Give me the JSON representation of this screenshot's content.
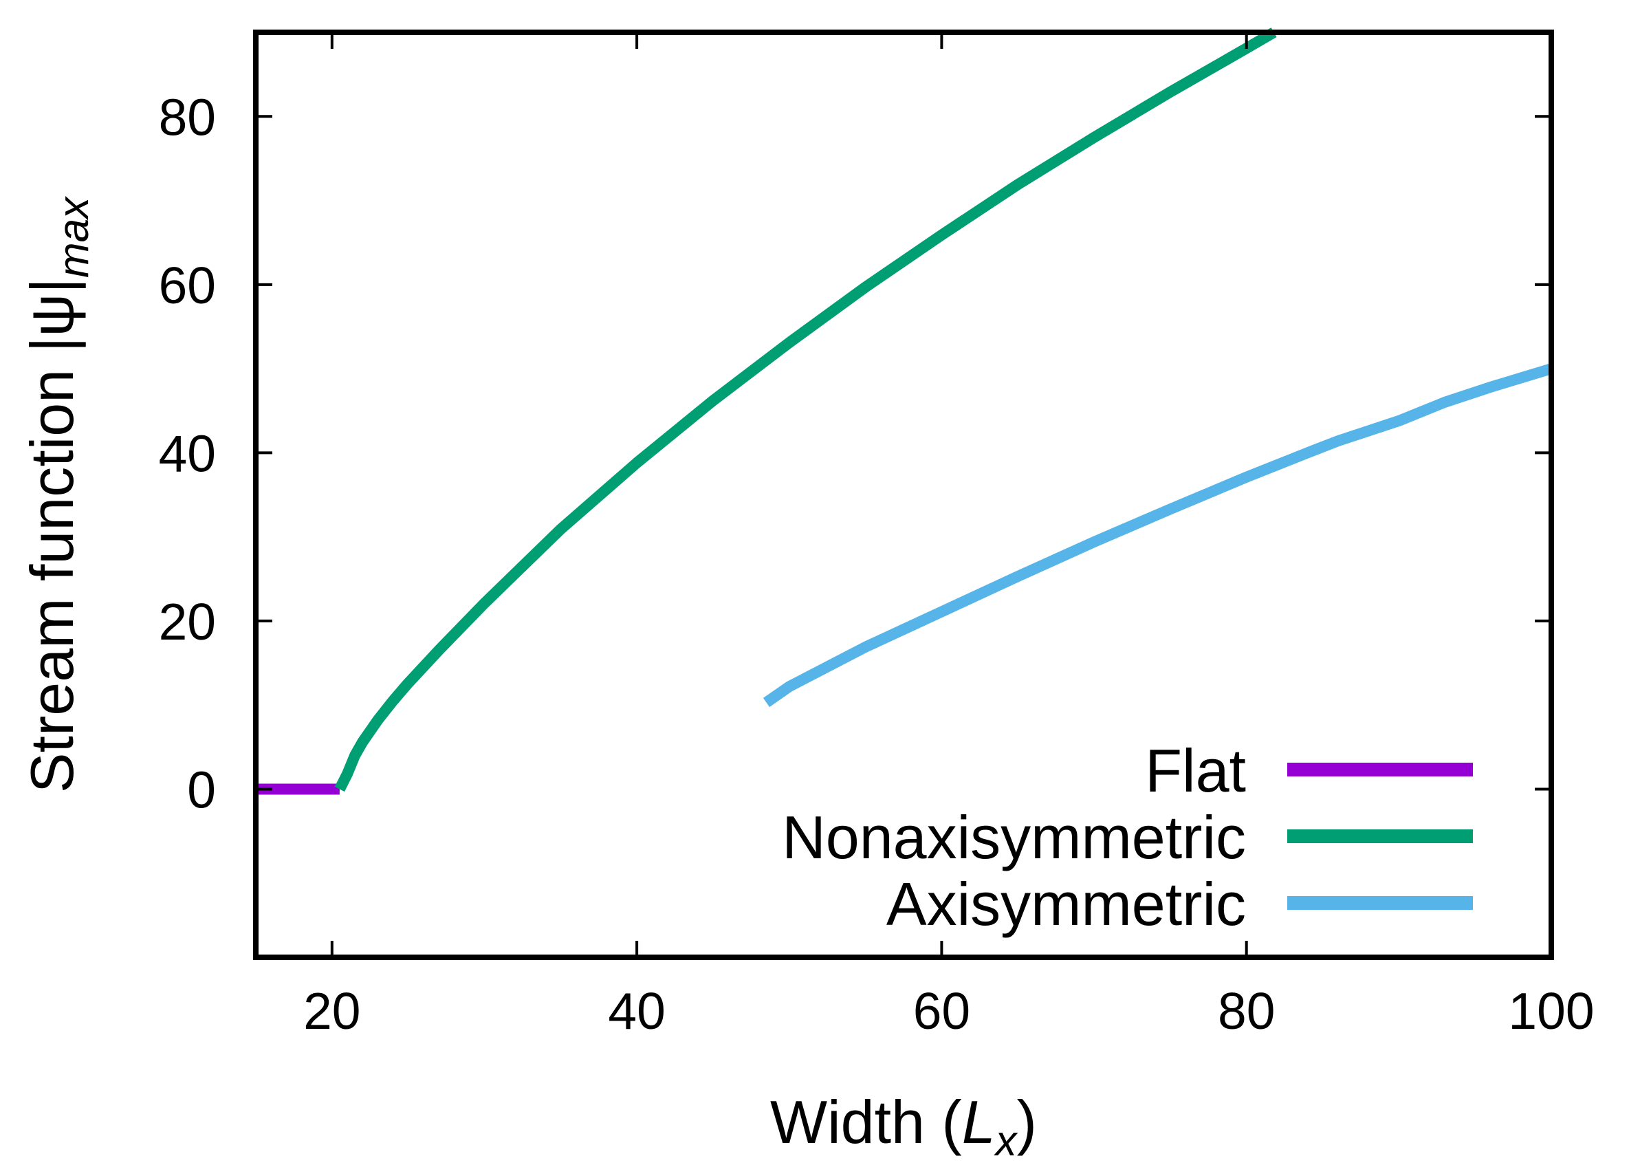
{
  "chart_data": {
    "type": "line",
    "xlabel": {
      "main": "Width (",
      "var": "L",
      "sub": "x",
      "close": ")"
    },
    "ylabel": {
      "main": "Stream function |ψ|",
      "sub": "max"
    },
    "xlim": [
      15,
      100
    ],
    "ylim": [
      -20,
      90
    ],
    "xticks": [
      20,
      40,
      60,
      80,
      100
    ],
    "yticks": [
      0,
      20,
      40,
      60,
      80
    ],
    "grid": false,
    "legend_position": "bottom-right",
    "series": [
      {
        "name": "Flat",
        "color": "#9400d3",
        "x": [
          15,
          20.5
        ],
        "y": [
          0,
          0
        ]
      },
      {
        "name": "Nonaxisymmetric",
        "color": "#009e73",
        "x": [
          20.5,
          21,
          21.5,
          22,
          23,
          24,
          25,
          27,
          30,
          35,
          40,
          45,
          50,
          55,
          60,
          65,
          70,
          75,
          80,
          81.8
        ],
        "y": [
          0,
          1.8,
          4,
          5.6,
          8.2,
          10.5,
          12.6,
          16.5,
          22.1,
          30.9,
          38.8,
          46.2,
          53.1,
          59.7,
          65.9,
          71.9,
          77.5,
          82.9,
          88.1,
          90
        ]
      },
      {
        "name": "Axisymmetric",
        "color": "#56b4e9",
        "x": [
          48.5,
          50,
          55,
          60,
          65,
          70,
          75,
          80,
          84,
          86,
          90,
          93,
          96,
          100
        ],
        "y": [
          10.3,
          12.2,
          16.9,
          21.1,
          25.3,
          29.4,
          33.3,
          37.1,
          40,
          41.4,
          43.8,
          46,
          47.8,
          50
        ]
      }
    ]
  }
}
